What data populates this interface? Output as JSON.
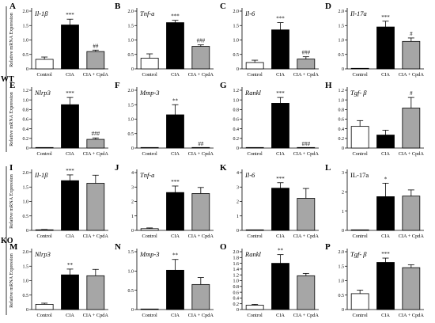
{
  "figure": {
    "group_labels": [
      "WT",
      "KO"
    ],
    "ylabel": "Relative mRNA Expression",
    "categories": [
      "Control",
      "CIA",
      "CIA + CpdA"
    ],
    "bar_colors": [
      "#ffffff",
      "#000000",
      "#a6a6a6"
    ]
  },
  "chart_data": [
    {
      "type": "bar",
      "panel": "A",
      "gene": "Il-1β",
      "italic": true,
      "categories": [
        "Control",
        "CIA",
        "CIA + CpdA"
      ],
      "values": [
        0.33,
        1.52,
        0.6
      ],
      "errors": [
        0.08,
        0.2,
        0.05
      ],
      "ylim": [
        0,
        2
      ],
      "yticks": [
        "0",
        "0.5",
        "1.0",
        "1.5",
        "2.0"
      ],
      "significance": [
        "",
        "***",
        "##"
      ]
    },
    {
      "type": "bar",
      "panel": "B",
      "gene": "Tnf-a",
      "italic": true,
      "categories": [
        "Control",
        "CIA",
        "CIA + CpdA"
      ],
      "values": [
        0.37,
        1.6,
        0.78
      ],
      "errors": [
        0.15,
        0.08,
        0.05
      ],
      "ylim": [
        0,
        2
      ],
      "yticks": [
        "0",
        "0.5",
        "1.0",
        "1.5",
        "2.0"
      ],
      "significance": [
        "",
        "***",
        "###"
      ]
    },
    {
      "type": "bar",
      "panel": "C",
      "gene": "Il-6",
      "italic": true,
      "categories": [
        "Control",
        "CIA",
        "CIA + CpdA"
      ],
      "values": [
        0.22,
        1.35,
        0.34
      ],
      "errors": [
        0.08,
        0.25,
        0.08
      ],
      "ylim": [
        0,
        2
      ],
      "yticks": [
        "0",
        "0.5",
        "1.0",
        "1.5",
        "2.0"
      ],
      "significance": [
        "",
        "***",
        "###"
      ]
    },
    {
      "type": "bar",
      "panel": "D",
      "gene": "Il-17a",
      "italic": true,
      "categories": [
        "Control",
        "CIA",
        "CIA + CpdA"
      ],
      "values": [
        0.01,
        1.45,
        0.95
      ],
      "errors": [
        0.0,
        0.2,
        0.12
      ],
      "ylim": [
        0,
        2
      ],
      "yticks": [
        "0",
        "0.5",
        "1.0",
        "1.5",
        "2.0"
      ],
      "significance": [
        "",
        "***",
        "#"
      ]
    },
    {
      "type": "bar",
      "panel": "E",
      "gene": "Nlrp3",
      "italic": true,
      "categories": [
        "Control",
        "CIA",
        "CIA + CpdA"
      ],
      "values": [
        0.0,
        0.9,
        0.18
      ],
      "errors": [
        0.0,
        0.15,
        0.03
      ],
      "ylim": [
        0,
        1.2
      ],
      "yticks": [
        "0",
        "0.2",
        "0.4",
        "0.6",
        "0.8",
        "1.0",
        "1.2"
      ],
      "significance": [
        "",
        "***",
        "###"
      ]
    },
    {
      "type": "bar",
      "panel": "F",
      "gene": "Mmp-3",
      "italic": true,
      "categories": [
        "Control",
        "CIA",
        "CIA + CpdA"
      ],
      "values": [
        0.0,
        1.15,
        0.0
      ],
      "errors": [
        0.0,
        0.35,
        0.0
      ],
      "ylim": [
        0,
        2
      ],
      "yticks": [
        "0",
        "0.5",
        "1.0",
        "1.5",
        "2.0"
      ],
      "significance": [
        "",
        "**",
        "##"
      ]
    },
    {
      "type": "bar",
      "panel": "G",
      "gene": "Rankl",
      "italic": true,
      "categories": [
        "Control",
        "CIA",
        "CIA + CpdA"
      ],
      "values": [
        0.01,
        0.93,
        0.0
      ],
      "errors": [
        0.0,
        0.12,
        0.0
      ],
      "ylim": [
        0,
        1.2
      ],
      "yticks": [
        "0",
        "0.2",
        "0.4",
        "0.6",
        "0.8",
        "1.0",
        "1.2"
      ],
      "significance": [
        "",
        "***",
        "###"
      ]
    },
    {
      "type": "bar",
      "panel": "H",
      "gene": "Tgf- β",
      "italic": true,
      "categories": [
        "Control",
        "CIA",
        "CIA + CpdA"
      ],
      "values": [
        0.45,
        0.27,
        0.83
      ],
      "errors": [
        0.12,
        0.1,
        0.22
      ],
      "ylim": [
        0,
        1.2
      ],
      "yticks": [
        "0",
        "0.2",
        "0.4",
        "0.6",
        "0.8",
        "1.0",
        "1.2"
      ],
      "significance": [
        "",
        "",
        "#"
      ]
    },
    {
      "type": "bar",
      "panel": "I",
      "gene": "Il-1β",
      "italic": true,
      "categories": [
        "Control",
        "CIA",
        "CIA + CpdA"
      ],
      "values": [
        0.02,
        1.72,
        1.63
      ],
      "errors": [
        0.01,
        0.2,
        0.28
      ],
      "ylim": [
        0,
        2
      ],
      "yticks": [
        "0",
        "0.5",
        "1.0",
        "1.5",
        "2.0"
      ],
      "significance": [
        "",
        "***",
        ""
      ]
    },
    {
      "type": "bar",
      "panel": "J",
      "gene": "Tnf-a",
      "italic": true,
      "categories": [
        "Control",
        "CIA",
        "CIA + CpdA"
      ],
      "values": [
        0.12,
        2.62,
        2.55
      ],
      "errors": [
        0.05,
        0.45,
        0.42
      ],
      "ylim": [
        0,
        4
      ],
      "yticks": [
        "0",
        "1",
        "2",
        "3",
        "4"
      ],
      "significance": [
        "",
        "***",
        ""
      ]
    },
    {
      "type": "bar",
      "panel": "K",
      "gene": "Il-6",
      "italic": true,
      "categories": [
        "Control",
        "CIA",
        "CIA + CpdA"
      ],
      "values": [
        0.0,
        2.92,
        2.22
      ],
      "errors": [
        0.0,
        0.38,
        0.68
      ],
      "ylim": [
        0,
        4
      ],
      "yticks": [
        "0",
        "1",
        "2",
        "3",
        "4"
      ],
      "significance": [
        "",
        "***",
        ""
      ]
    },
    {
      "type": "bar",
      "panel": "L",
      "gene": "IL-17a",
      "italic": false,
      "categories": [
        "Control",
        "CIA",
        "CIA + CpdA"
      ],
      "values": [
        0.0,
        1.75,
        1.78
      ],
      "errors": [
        0.0,
        0.7,
        0.32
      ],
      "ylim": [
        0,
        3
      ],
      "yticks": [
        "0",
        "1",
        "2",
        "3"
      ],
      "significance": [
        "",
        "*",
        ""
      ]
    },
    {
      "type": "bar",
      "panel": "M",
      "gene": "Nlrp3",
      "italic": true,
      "categories": [
        "Control",
        "CIA",
        "CIA + CpdA"
      ],
      "values": [
        0.18,
        1.2,
        1.17
      ],
      "errors": [
        0.04,
        0.2,
        0.22
      ],
      "ylim": [
        0,
        2
      ],
      "yticks": [
        "0",
        "0.5",
        "1.0",
        "1.5",
        "2.0"
      ],
      "significance": [
        "",
        "**",
        ""
      ]
    },
    {
      "type": "bar",
      "panel": "N",
      "gene": "Mmp-3",
      "italic": true,
      "categories": [
        "Control",
        "CIA",
        "CIA + CpdA"
      ],
      "values": [
        0.0,
        1.02,
        0.65
      ],
      "errors": [
        0.0,
        0.28,
        0.18
      ],
      "ylim": [
        0,
        1.5
      ],
      "yticks": [
        "0",
        "0.5",
        "1.0",
        "1.5"
      ],
      "significance": [
        "",
        "**",
        ""
      ]
    },
    {
      "type": "bar",
      "panel": "O",
      "gene": "Rankl",
      "italic": true,
      "categories": [
        "Control",
        "CIA",
        "CIA + CpdA"
      ],
      "values": [
        0.15,
        1.6,
        1.17
      ],
      "errors": [
        0.03,
        0.3,
        0.08
      ],
      "ylim": [
        0,
        2
      ],
      "yticks": [
        "0",
        "0.2",
        "0.4",
        "0.6",
        "0.8",
        "1.0",
        "1.2",
        "1.4",
        "1.6",
        "1.8",
        "2.0"
      ],
      "significance": [
        "",
        "**",
        ""
      ]
    },
    {
      "type": "bar",
      "panel": "P",
      "gene": "Tgf- β",
      "italic": true,
      "categories": [
        "Control",
        "CIA",
        "CIA + CpdA"
      ],
      "values": [
        0.55,
        1.63,
        1.45
      ],
      "errors": [
        0.12,
        0.15,
        0.1
      ],
      "ylim": [
        0,
        2
      ],
      "yticks": [
        "0",
        "0.5",
        "1.0",
        "1.5",
        "2.0"
      ],
      "significance": [
        "",
        "***",
        ""
      ]
    }
  ]
}
